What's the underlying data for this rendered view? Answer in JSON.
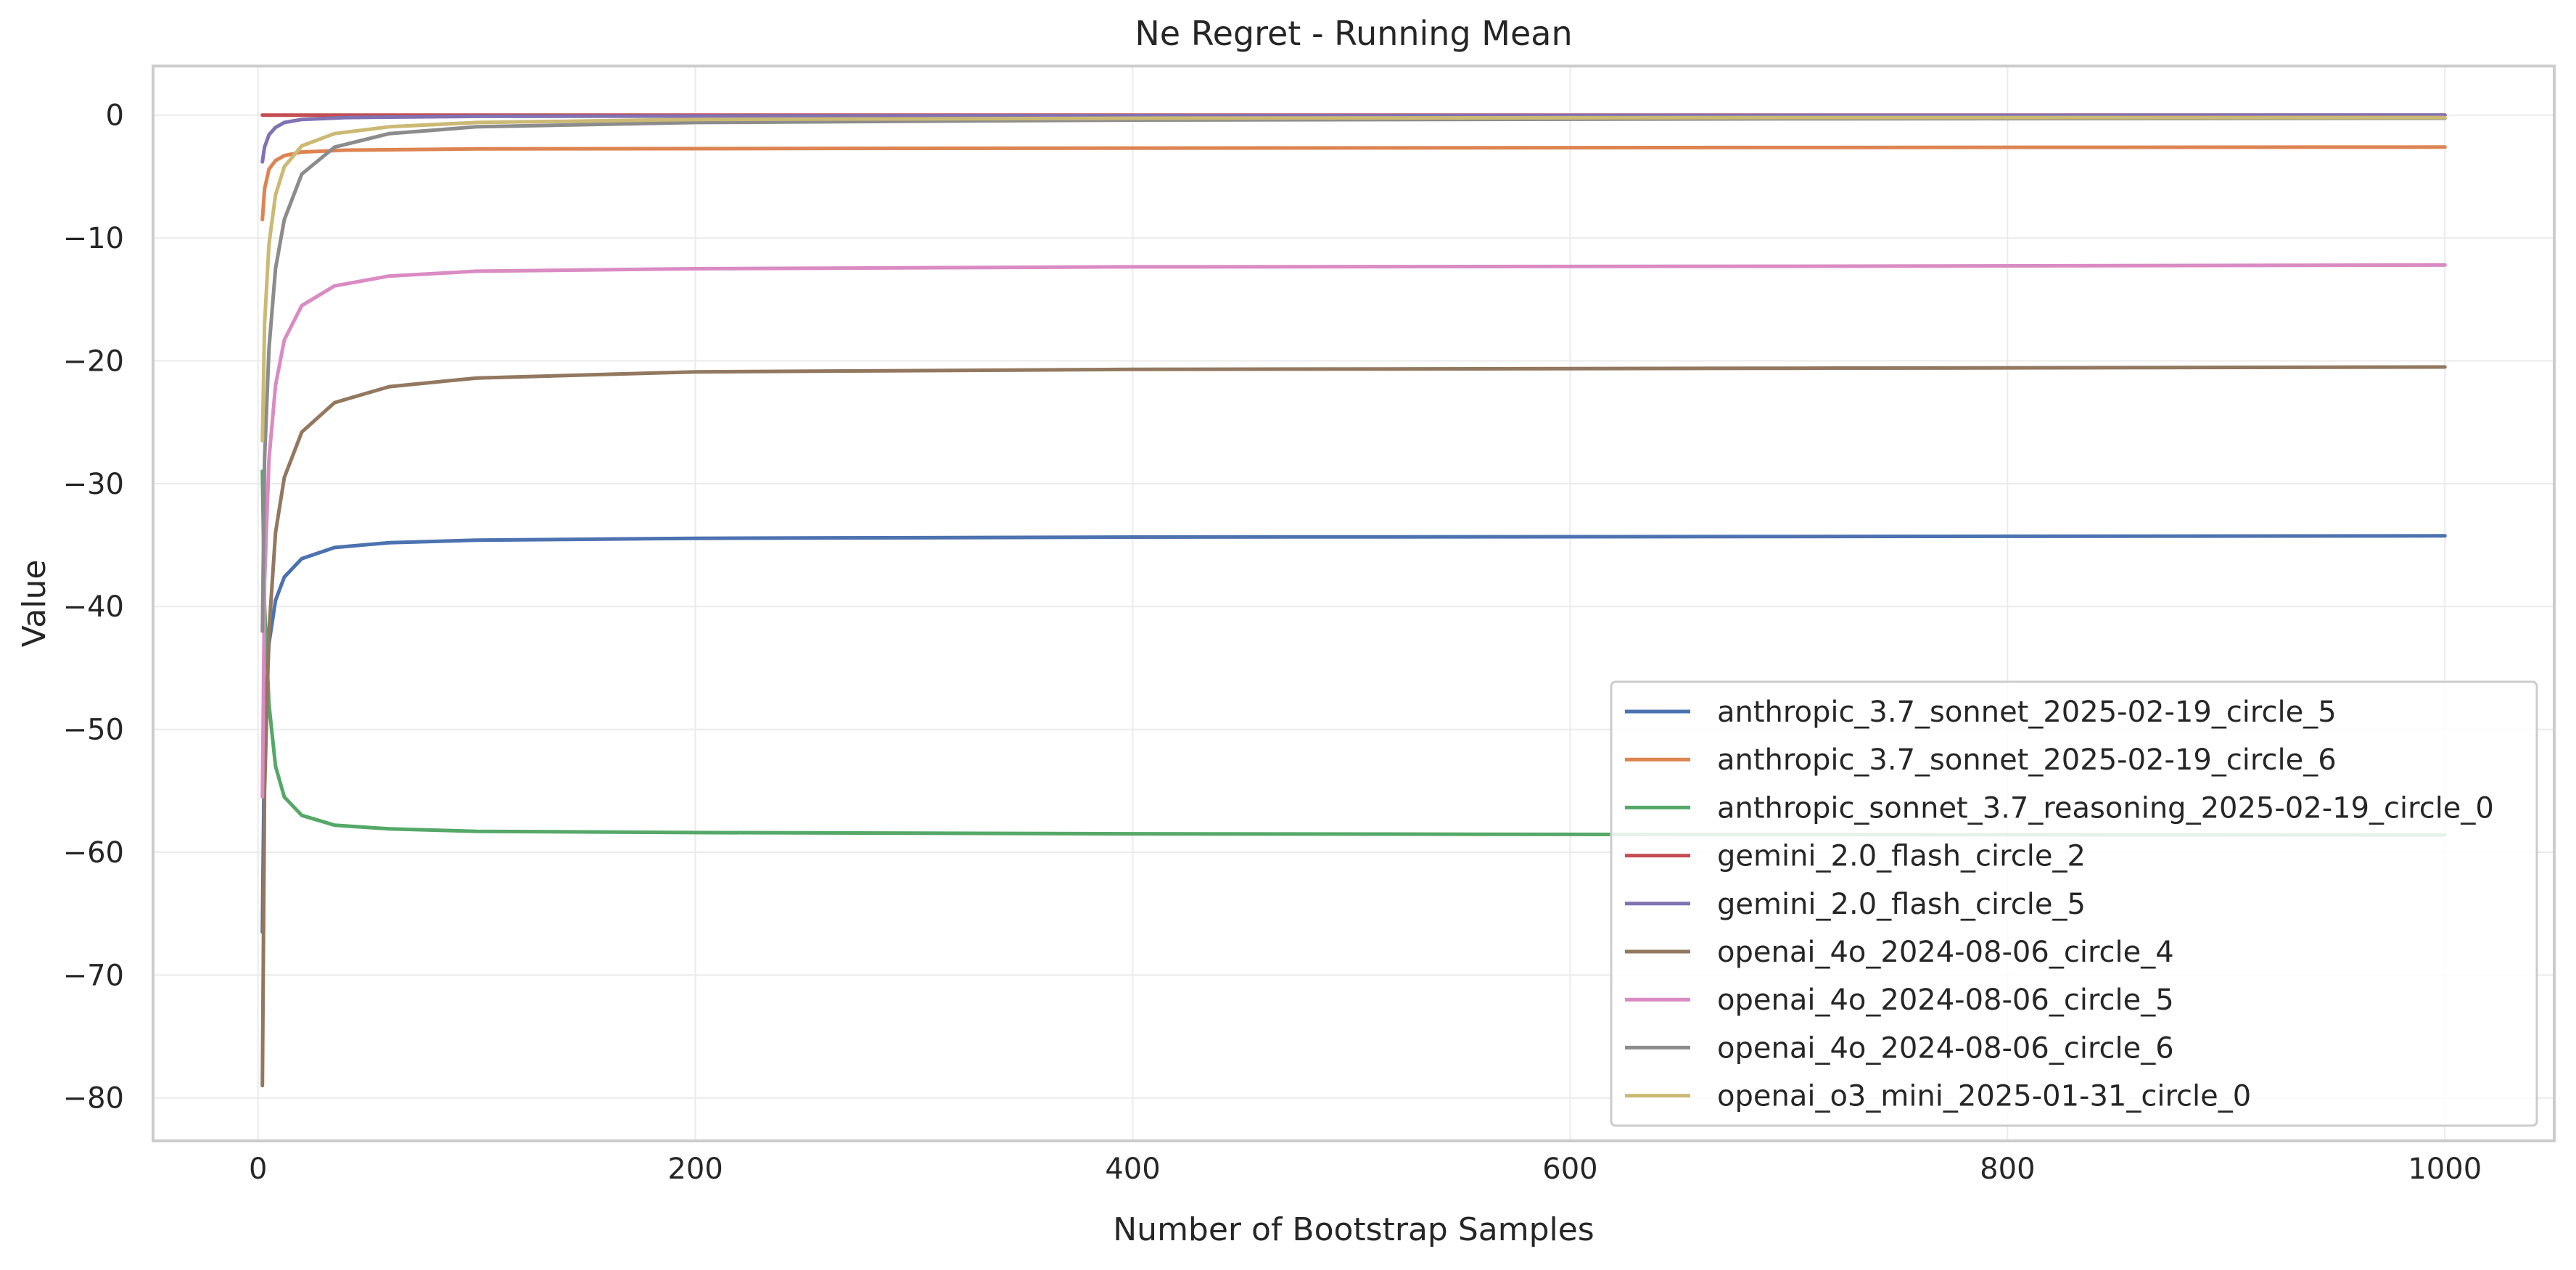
{
  "chart_data": {
    "type": "line",
    "title": "Ne Regret - Running Mean",
    "xlabel": "Number of Bootstrap Samples",
    "ylabel": "Value",
    "xlim": [
      -48,
      1050
    ],
    "ylim": [
      -83.5,
      4
    ],
    "xticks": [
      0,
      200,
      400,
      600,
      800,
      1000
    ],
    "yticks": [
      0,
      -10,
      -20,
      -30,
      -40,
      -50,
      -60,
      -70,
      -80
    ],
    "xtick_labels": [
      "0",
      "200",
      "400",
      "600",
      "800",
      "1000"
    ],
    "ytick_labels": [
      "0",
      "−10",
      "−20",
      "−30",
      "−40",
      "−50",
      "−60",
      "−70",
      "−80"
    ],
    "grid": true,
    "legend_position": "lower-right",
    "series": [
      {
        "name": "anthropic_3.7_sonnet_2025-02-19_circle_5",
        "color": "#4c72b0",
        "points": [
          [
            2,
            -66.5
          ],
          [
            3,
            -50
          ],
          [
            5,
            -43
          ],
          [
            8,
            -39.5
          ],
          [
            12,
            -37.6
          ],
          [
            20,
            -36.1
          ],
          [
            35,
            -35.2
          ],
          [
            60,
            -34.8
          ],
          [
            100,
            -34.6
          ],
          [
            200,
            -34.45
          ],
          [
            400,
            -34.35
          ],
          [
            700,
            -34.3
          ],
          [
            1000,
            -34.25
          ]
        ]
      },
      {
        "name": "anthropic_3.7_sonnet_2025-02-19_circle_6",
        "color": "#dd8452",
        "points": [
          [
            2,
            -8.5
          ],
          [
            3,
            -6
          ],
          [
            5,
            -4.4
          ],
          [
            8,
            -3.7
          ],
          [
            12,
            -3.3
          ],
          [
            20,
            -3.0
          ],
          [
            40,
            -2.85
          ],
          [
            100,
            -2.75
          ],
          [
            300,
            -2.7
          ],
          [
            600,
            -2.65
          ],
          [
            1000,
            -2.6
          ]
        ]
      },
      {
        "name": "anthropic_sonnet_3.7_reasoning_2025-02-19_circle_0",
        "color": "#55a868",
        "points": [
          [
            2,
            -29
          ],
          [
            3,
            -40
          ],
          [
            5,
            -48
          ],
          [
            8,
            -53
          ],
          [
            12,
            -55.5
          ],
          [
            20,
            -57
          ],
          [
            35,
            -57.8
          ],
          [
            60,
            -58.1
          ],
          [
            100,
            -58.3
          ],
          [
            200,
            -58.4
          ],
          [
            400,
            -58.5
          ],
          [
            600,
            -58.55
          ],
          [
            1000,
            -58.6
          ]
        ]
      },
      {
        "name": "gemini_2.0_flash_circle_2",
        "color": "#c44e52",
        "points": [
          [
            2,
            0
          ],
          [
            100,
            0
          ],
          [
            500,
            0
          ],
          [
            1000,
            0
          ]
        ]
      },
      {
        "name": "gemini_2.0_flash_circle_5",
        "color": "#8172b3",
        "points": [
          [
            2,
            -3.8
          ],
          [
            3,
            -2.6
          ],
          [
            5,
            -1.6
          ],
          [
            8,
            -1.0
          ],
          [
            12,
            -0.6
          ],
          [
            20,
            -0.35
          ],
          [
            40,
            -0.2
          ],
          [
            100,
            -0.1
          ],
          [
            300,
            -0.05
          ],
          [
            1000,
            0
          ]
        ]
      },
      {
        "name": "openai_4o_2024-08-06_circle_4",
        "color": "#937860",
        "points": [
          [
            2,
            -79
          ],
          [
            3,
            -55
          ],
          [
            5,
            -42
          ],
          [
            8,
            -34
          ],
          [
            12,
            -29.5
          ],
          [
            20,
            -25.8
          ],
          [
            35,
            -23.4
          ],
          [
            60,
            -22.1
          ],
          [
            100,
            -21.4
          ],
          [
            200,
            -20.9
          ],
          [
            400,
            -20.7
          ],
          [
            700,
            -20.6
          ],
          [
            1000,
            -20.5
          ]
        ]
      },
      {
        "name": "openai_4o_2024-08-06_circle_5",
        "color": "#da8bc3",
        "points": [
          [
            2,
            -55.5
          ],
          [
            3,
            -38
          ],
          [
            5,
            -28
          ],
          [
            8,
            -22
          ],
          [
            12,
            -18.3
          ],
          [
            20,
            -15.5
          ],
          [
            35,
            -13.9
          ],
          [
            60,
            -13.1
          ],
          [
            100,
            -12.7
          ],
          [
            200,
            -12.5
          ],
          [
            400,
            -12.35
          ],
          [
            700,
            -12.3
          ],
          [
            1000,
            -12.2
          ]
        ]
      },
      {
        "name": "openai_4o_2024-08-06_circle_6",
        "color": "#8c8c8c",
        "points": [
          [
            2,
            -42
          ],
          [
            3,
            -28
          ],
          [
            5,
            -19
          ],
          [
            8,
            -12.5
          ],
          [
            12,
            -8.5
          ],
          [
            20,
            -4.8
          ],
          [
            35,
            -2.6
          ],
          [
            60,
            -1.5
          ],
          [
            100,
            -0.95
          ],
          [
            200,
            -0.6
          ],
          [
            400,
            -0.4
          ],
          [
            700,
            -0.3
          ],
          [
            1000,
            -0.25
          ]
        ]
      },
      {
        "name": "openai_o3_mini_2025-01-31_circle_0",
        "color": "#ccb974",
        "points": [
          [
            2,
            -26.5
          ],
          [
            3,
            -17
          ],
          [
            5,
            -10.5
          ],
          [
            8,
            -6.5
          ],
          [
            12,
            -4.2
          ],
          [
            20,
            -2.5
          ],
          [
            35,
            -1.5
          ],
          [
            60,
            -0.95
          ],
          [
            100,
            -0.6
          ],
          [
            200,
            -0.35
          ],
          [
            400,
            -0.25
          ],
          [
            700,
            -0.2
          ],
          [
            1000,
            -0.2
          ]
        ]
      }
    ]
  }
}
